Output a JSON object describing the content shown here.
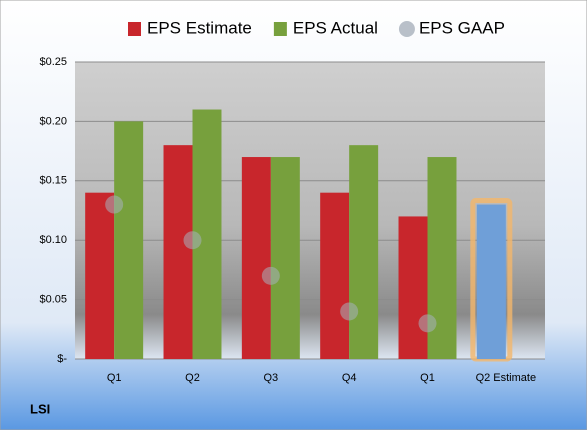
{
  "chart_data": {
    "type": "bar",
    "title": "LSI",
    "categories": [
      "Q1",
      "Q2",
      "Q3",
      "Q4",
      "Q1",
      "Q2 Estimate"
    ],
    "series": [
      {
        "name": "EPS Estimate",
        "color": "#c8262c",
        "point_colors": [
          "#c8262c",
          "#c8262c",
          "#c8262c",
          "#c8262c",
          "#c8262c",
          "#6f9fd8"
        ],
        "values": [
          0.14,
          0.18,
          0.17,
          0.14,
          0.12,
          0.13
        ]
      },
      {
        "name": "EPS Actual",
        "color": "#77a03d",
        "values": [
          0.2,
          0.21,
          0.17,
          0.18,
          0.17,
          null
        ]
      },
      {
        "name": "EPS GAAP",
        "color": "#a8b0bc",
        "marker": "circle",
        "values": [
          0.13,
          0.1,
          0.07,
          0.04,
          0.03,
          null
        ]
      }
    ],
    "ylim": [
      0,
      0.25
    ],
    "yticks": [
      {
        "value": 0,
        "label": "$-"
      },
      {
        "value": 0.05,
        "label": "$0.05"
      },
      {
        "value": 0.1,
        "label": "$0.10"
      },
      {
        "value": 0.15,
        "label": "$0.15"
      },
      {
        "value": 0.2,
        "label": "$0.20"
      },
      {
        "value": 0.25,
        "label": "$0.25"
      }
    ],
    "grid": true,
    "legend": "top"
  }
}
